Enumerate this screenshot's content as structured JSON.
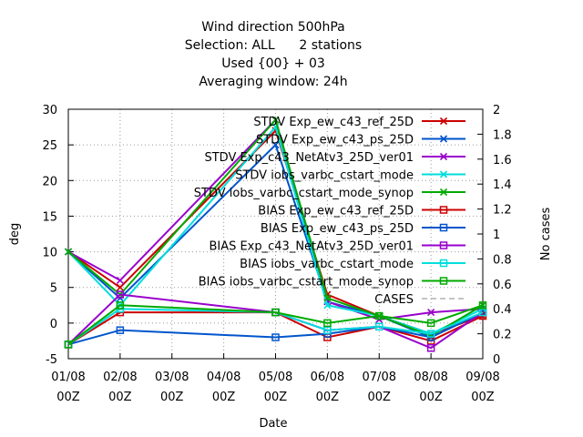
{
  "chart_data": {
    "type": "line",
    "title_lines": [
      "Wind direction 500hPa",
      "Selection: ALL      2 stations",
      "Used {00} + 03",
      "Averaging window: 24h"
    ],
    "xlabel": "Date",
    "ylabel": "deg",
    "y2label": "No cases",
    "categories": [
      {
        "date": "01/08",
        "hour": "00Z"
      },
      {
        "date": "02/08",
        "hour": "00Z"
      },
      {
        "date": "03/08",
        "hour": "00Z"
      },
      {
        "date": "04/08",
        "hour": "00Z"
      },
      {
        "date": "05/08",
        "hour": "00Z"
      },
      {
        "date": "06/08",
        "hour": "00Z"
      },
      {
        "date": "07/08",
        "hour": "00Z"
      },
      {
        "date": "08/08",
        "hour": "00Z"
      },
      {
        "date": "09/08",
        "hour": "00Z"
      }
    ],
    "ylim": [
      -5,
      30
    ],
    "y_ticks": [
      "-5",
      "0",
      "5",
      "10",
      "15",
      "20",
      "25",
      "30"
    ],
    "y2lim": [
      0,
      2
    ],
    "y2_ticks": [
      "0",
      "0.2",
      "0.4",
      "0.6",
      "0.8",
      "1",
      "1.2",
      "1.4",
      "1.6",
      "1.8",
      "2"
    ],
    "grid": true,
    "legend_position": "top-right",
    "series": [
      {
        "name": "STDV Exp_ew_c43_ref_25D",
        "color": "#cc0000",
        "marker": "x",
        "x": [
          0,
          1,
          4,
          5,
          6,
          7,
          8
        ],
        "values": [
          10,
          5,
          27,
          4,
          1,
          -1.5,
          1
        ]
      },
      {
        "name": "STDV Exp_ew_c43_ps_25D",
        "color": "#0055cc",
        "marker": "x",
        "x": [
          0,
          1,
          4,
          5,
          6,
          7,
          8
        ],
        "values": [
          10,
          3.5,
          25,
          3,
          1,
          -2,
          1.5
        ]
      },
      {
        "name": "STDV Exp_c43_NetAtv3_25D_ver01",
        "color": "#9900cc",
        "marker": "x",
        "x": [
          0,
          1,
          4,
          5,
          6,
          7,
          8
        ],
        "values": [
          10,
          6,
          28.5,
          3,
          0.5,
          1.5,
          2
        ]
      },
      {
        "name": "STDV iobs_varbc_cstart_mode",
        "color": "#00dddd",
        "marker": "x",
        "x": [
          0,
          1,
          4,
          5,
          6,
          7,
          8
        ],
        "values": [
          10,
          2.5,
          27.5,
          2.5,
          1,
          -1.5,
          2
        ]
      },
      {
        "name": "STDV iobs_varbc_cstart_mode_synop",
        "color": "#00aa00",
        "marker": "x",
        "x": [
          0,
          1,
          4,
          5,
          6,
          7,
          8
        ],
        "values": [
          10,
          4,
          28.5,
          3.5,
          1,
          -1.8,
          2.5
        ]
      },
      {
        "name": "BIAS Exp_ew_c43_ref_25D",
        "color": "#cc0000",
        "marker": "square",
        "x": [
          0,
          1,
          4,
          5,
          6,
          7,
          8
        ],
        "values": [
          -3,
          1.5,
          1.5,
          -2,
          -0.5,
          -2.5,
          1
        ]
      },
      {
        "name": "BIAS Exp_ew_c43_ps_25D",
        "color": "#0055cc",
        "marker": "square",
        "x": [
          0,
          1,
          4,
          5,
          6,
          7,
          8
        ],
        "values": [
          -3,
          -1,
          -2,
          -1.5,
          -0.5,
          -2,
          1.5
        ]
      },
      {
        "name": "BIAS Exp_c43_NetAtv3_25D_ver01",
        "color": "#9900cc",
        "marker": "square",
        "x": [
          0,
          1,
          4,
          5,
          6,
          7,
          8
        ],
        "values": [
          -3,
          4,
          1.5,
          -1,
          -0.5,
          -3.5,
          1.5
        ]
      },
      {
        "name": "BIAS iobs_varbc_cstart_mode",
        "color": "#00dddd",
        "marker": "square",
        "x": [
          0,
          1,
          4,
          5,
          6,
          7,
          8
        ],
        "values": [
          -3,
          2,
          1.5,
          -1,
          -0.5,
          -1.5,
          1.5
        ]
      },
      {
        "name": "BIAS iobs_varbc_cstart_mode_synop",
        "color": "#00aa00",
        "marker": "square",
        "x": [
          0,
          1,
          4,
          5,
          6,
          7,
          8
        ],
        "values": [
          -3,
          2.5,
          1.5,
          0,
          1,
          0,
          2.5
        ]
      },
      {
        "name": "CASES",
        "color": "#888888",
        "marker": "none",
        "dashed": true,
        "axis": "y2",
        "x": [],
        "values": []
      }
    ]
  }
}
